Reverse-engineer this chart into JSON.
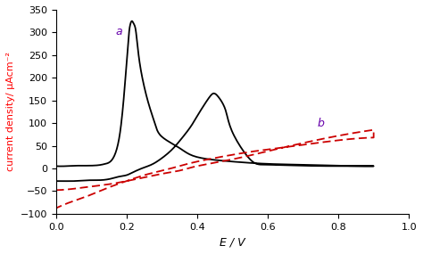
{
  "title": "",
  "xlabel": "E / V",
  "ylabel": "current density/ μAcm⁻²",
  "xlim": [
    0,
    1.0
  ],
  "ylim": [
    -100,
    350
  ],
  "yticks": [
    -100,
    -50,
    0,
    50,
    100,
    150,
    200,
    250,
    300,
    350
  ],
  "xticks": [
    0,
    0.2,
    0.4,
    0.6,
    0.8,
    1.0
  ],
  "label_a_color": "#6600aa",
  "label_b_color": "#6600aa",
  "curve_a_color": "#000000",
  "curve_b_color": "#cc0000",
  "background_color": "#ffffff"
}
